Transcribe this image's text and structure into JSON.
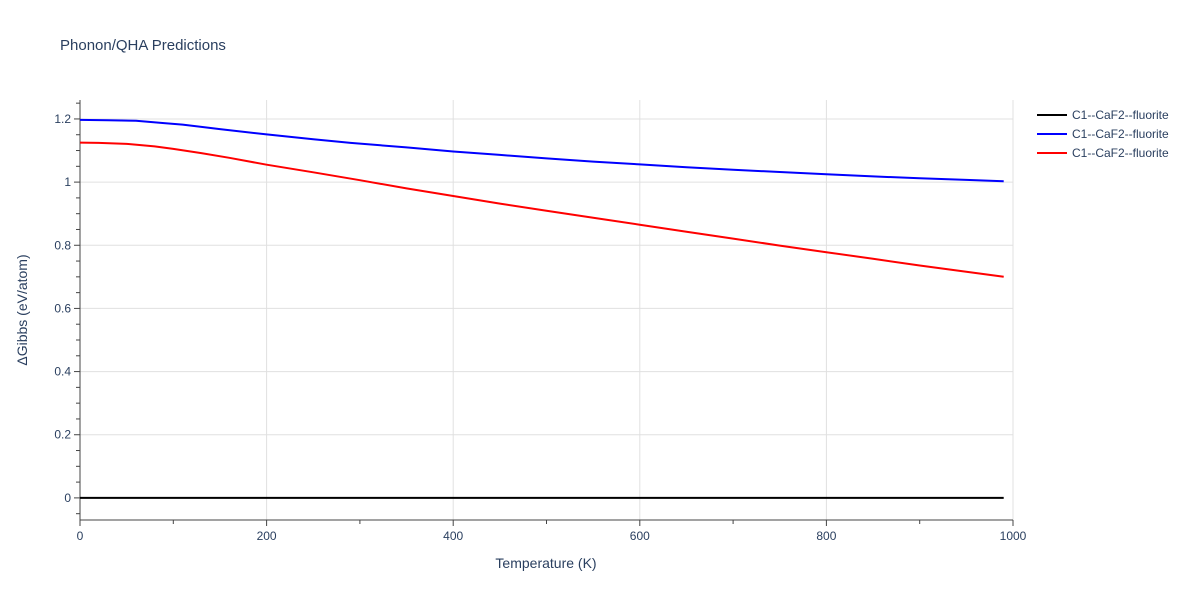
{
  "chart_data": {
    "type": "line",
    "title": "Phonon/QHA Predictions",
    "xlabel": "Temperature (K)",
    "ylabel": "ΔGibbs (eV/atom)",
    "xlim": [
      0,
      1000
    ],
    "ylim": [
      -0.07,
      1.26
    ],
    "xticks": [
      0,
      200,
      400,
      600,
      800,
      1000
    ],
    "xtick_labels": [
      "0",
      "200",
      "400",
      "600",
      "800",
      "1000"
    ],
    "yticks": [
      0,
      0.2,
      0.4,
      0.6,
      0.8,
      1,
      1.2
    ],
    "ytick_labels": [
      "0",
      "0.2",
      "0.4",
      "0.6",
      "0.8",
      "1",
      "1.2"
    ],
    "grid": true,
    "legend_position": "top-right",
    "series": [
      {
        "name": "C1--CaF2--fluorite",
        "color": "#000000",
        "x": [
          0,
          990
        ],
        "y": [
          0,
          0
        ]
      },
      {
        "name": "C1--CaF2--fluorite",
        "color": "#0000ff",
        "x": [
          0,
          30,
          60,
          90,
          110,
          150,
          200,
          250,
          290,
          350,
          400,
          450,
          500,
          550,
          600,
          650,
          700,
          750,
          800,
          850,
          900,
          950,
          990
        ],
        "y": [
          1.197,
          1.196,
          1.194,
          1.187,
          1.182,
          1.168,
          1.151,
          1.136,
          1.124,
          1.11,
          1.097,
          1.086,
          1.075,
          1.065,
          1.056,
          1.047,
          1.039,
          1.032,
          1.025,
          1.018,
          1.012,
          1.007,
          1.003
        ]
      },
      {
        "name": "C1--CaF2--fluorite",
        "color": "#ff0000",
        "x": [
          0,
          20,
          50,
          80,
          100,
          130,
          160,
          200,
          250,
          300,
          350,
          400,
          450,
          500,
          550,
          600,
          650,
          700,
          750,
          800,
          850,
          900,
          950,
          990
        ],
        "y": [
          1.125,
          1.124,
          1.121,
          1.113,
          1.105,
          1.092,
          1.077,
          1.055,
          1.031,
          1.006,
          0.98,
          0.956,
          0.932,
          0.909,
          0.887,
          0.865,
          0.843,
          0.821,
          0.799,
          0.778,
          0.757,
          0.736,
          0.716,
          0.7
        ]
      }
    ]
  }
}
